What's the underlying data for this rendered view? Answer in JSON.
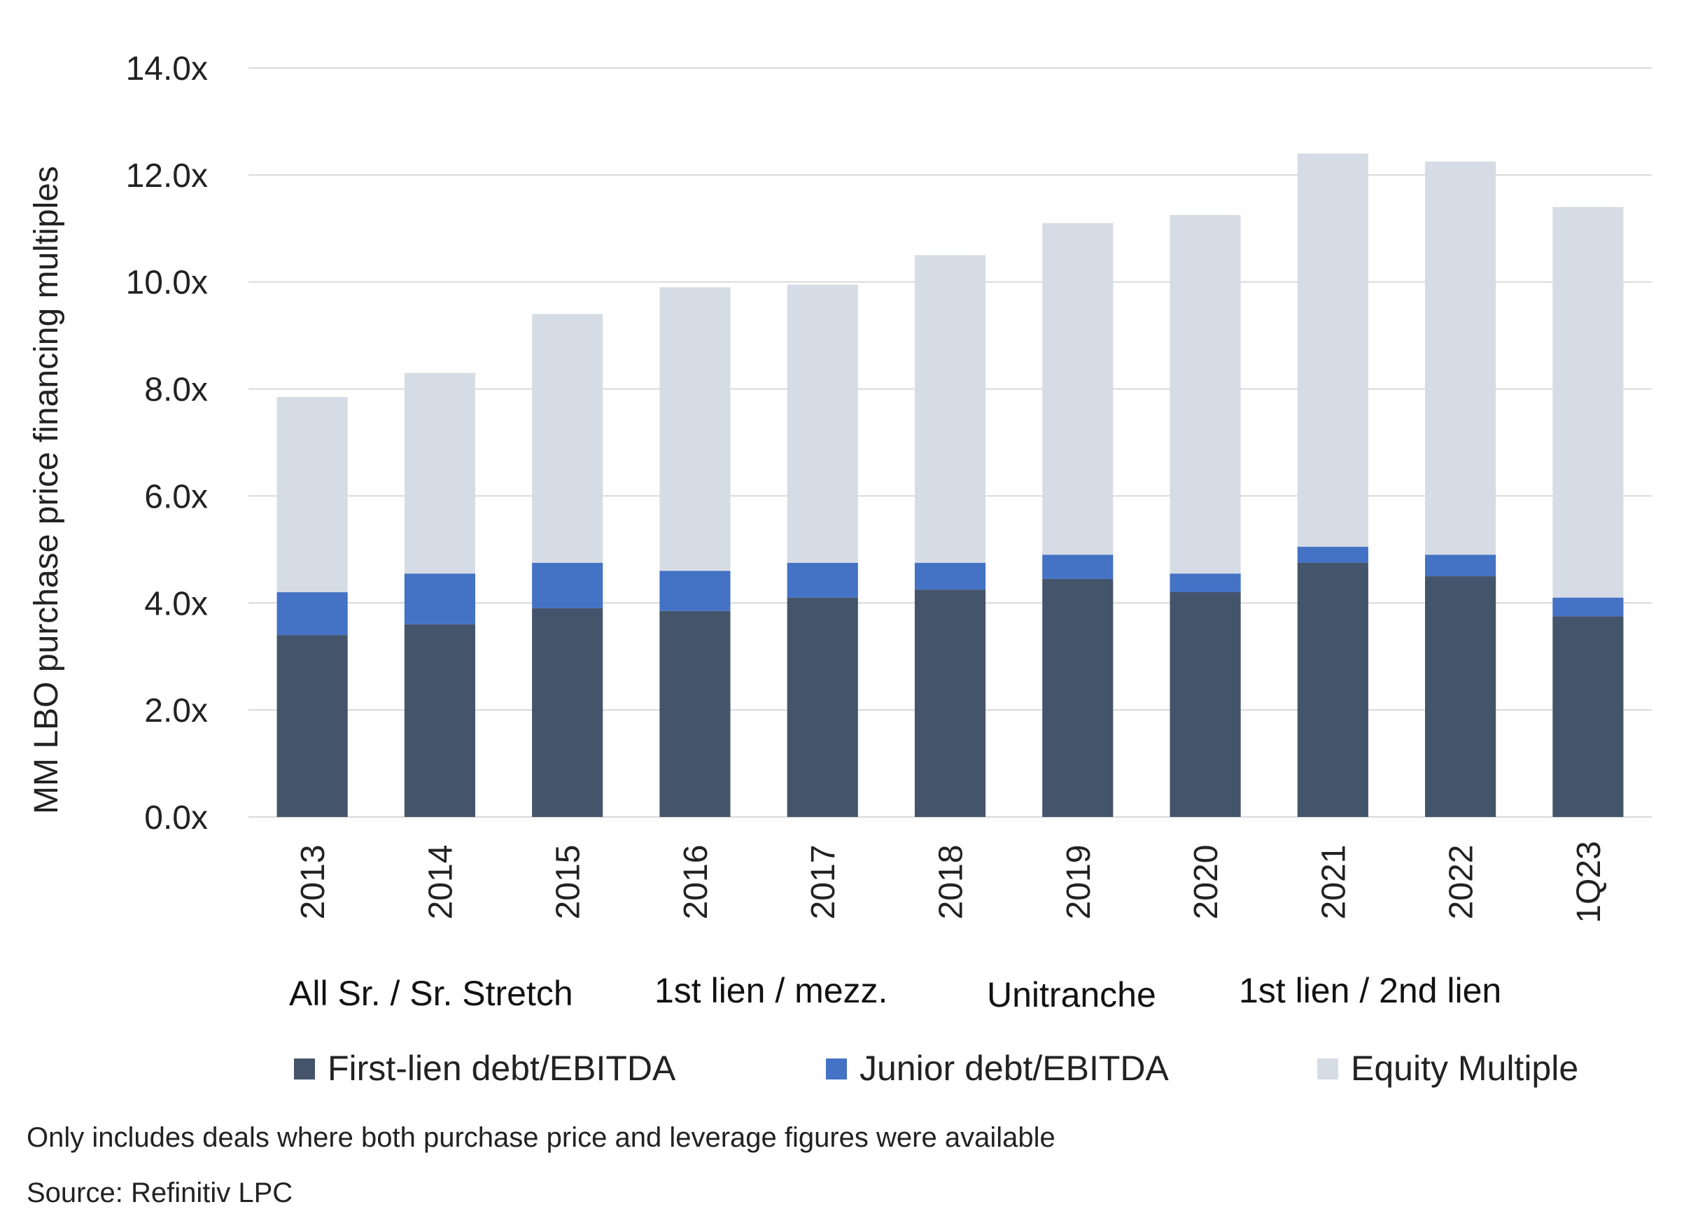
{
  "chart_data": {
    "type": "bar",
    "stacked": true,
    "categories": [
      "2013",
      "2014",
      "2015",
      "2016",
      "2017",
      "2018",
      "2019",
      "2020",
      "2021",
      "2022",
      "1Q23"
    ],
    "series": [
      {
        "name": "First-lien debt/EBITDA",
        "color": "#44546a",
        "values": [
          3.4,
          3.6,
          3.9,
          3.85,
          4.1,
          4.25,
          4.45,
          4.2,
          4.75,
          4.5,
          3.75
        ]
      },
      {
        "name": "Junior debt/EBITDA",
        "color": "#4472c4",
        "values": [
          0.8,
          0.95,
          0.85,
          0.75,
          0.65,
          0.5,
          0.45,
          0.35,
          0.3,
          0.4,
          0.35
        ]
      },
      {
        "name": "Equity Multiple",
        "color": "#d6dce5",
        "values": [
          3.65,
          3.75,
          4.65,
          5.3,
          5.2,
          5.75,
          6.2,
          6.7,
          7.35,
          7.35,
          7.3
        ]
      }
    ],
    "ylabel": "MM LBO purchase price financing multiples",
    "xlabel": "",
    "ylim": [
      0,
      14
    ],
    "yticks": [
      "0.0x",
      "2.0x",
      "4.0x",
      "6.0x",
      "8.0x",
      "10.0x",
      "12.0x",
      "14.0x"
    ],
    "grid": true,
    "legend_position": "bottom",
    "group_labels": [
      "All Sr. / Sr. Stretch",
      "1st lien / mezz.",
      "Unitranche",
      "1st lien / 2nd lien"
    ]
  },
  "footnotes": [
    "Only includes deals where both purchase price and leverage figures were available",
    "Source: Refinitiv LPC"
  ]
}
